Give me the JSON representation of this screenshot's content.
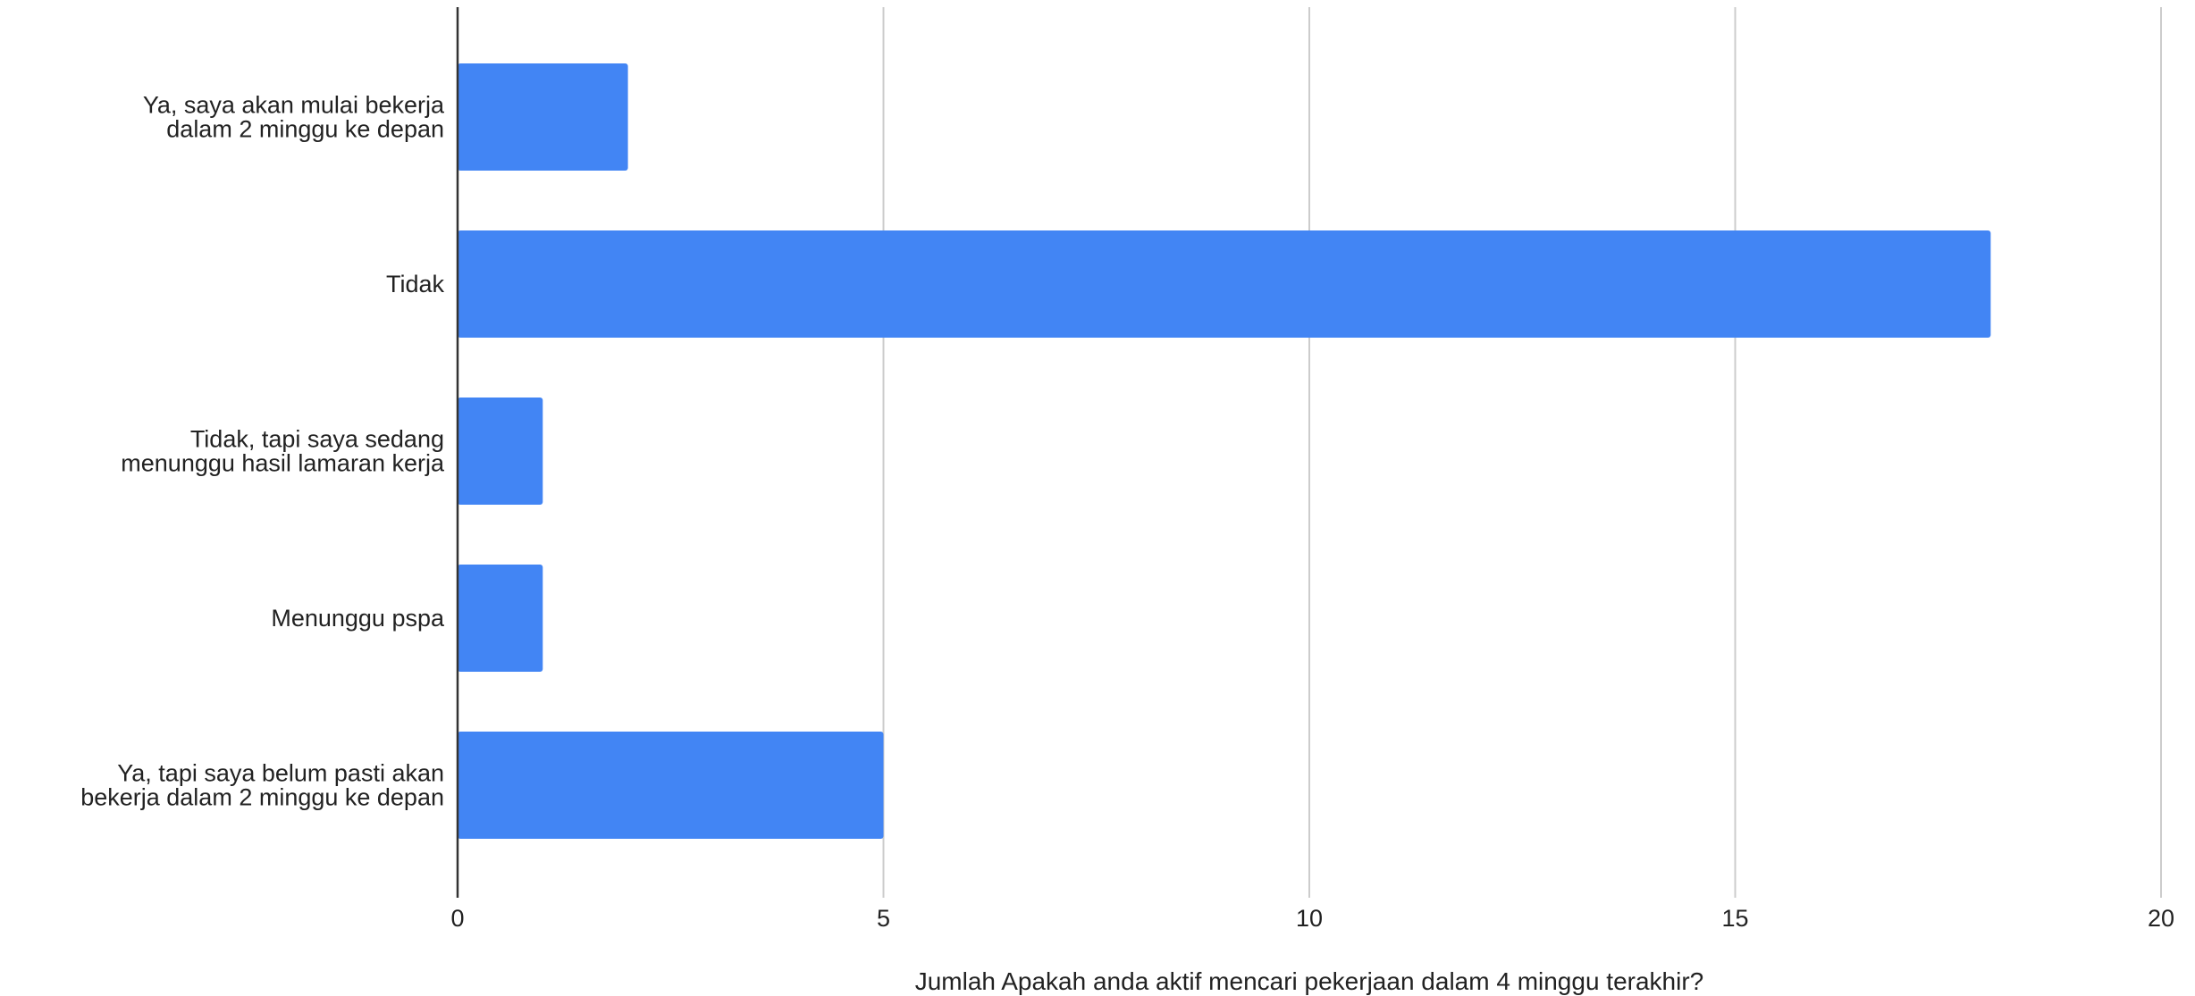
{
  "chart_data": {
    "type": "bar",
    "orientation": "horizontal",
    "title": "",
    "xlabel": "Jumlah Apakah anda aktif mencari pekerjaan dalam 4 minggu terakhir?",
    "ylabel": "",
    "categories": [
      [
        "Ya, saya akan mulai bekerja",
        "dalam 2 minggu ke depan"
      ],
      [
        "Tidak"
      ],
      [
        "Tidak, tapi saya sedang",
        "menunggu hasil lamaran kerja"
      ],
      [
        "Menunggu pspa"
      ],
      [
        "Ya, tapi saya belum pasti akan",
        "bekerja dalam 2 minggu ke depan"
      ]
    ],
    "values": [
      2,
      18,
      1,
      1,
      5
    ],
    "xlim": [
      0,
      20
    ],
    "xticks": [
      0,
      5,
      10,
      15,
      20
    ],
    "xtick_labels": [
      "0",
      "5",
      "10",
      "15",
      "20"
    ],
    "grid": "vertical",
    "legend": "none",
    "bar_color": "#4285f4",
    "grid_color": "#cccccc",
    "axis_color": "#333333"
  }
}
